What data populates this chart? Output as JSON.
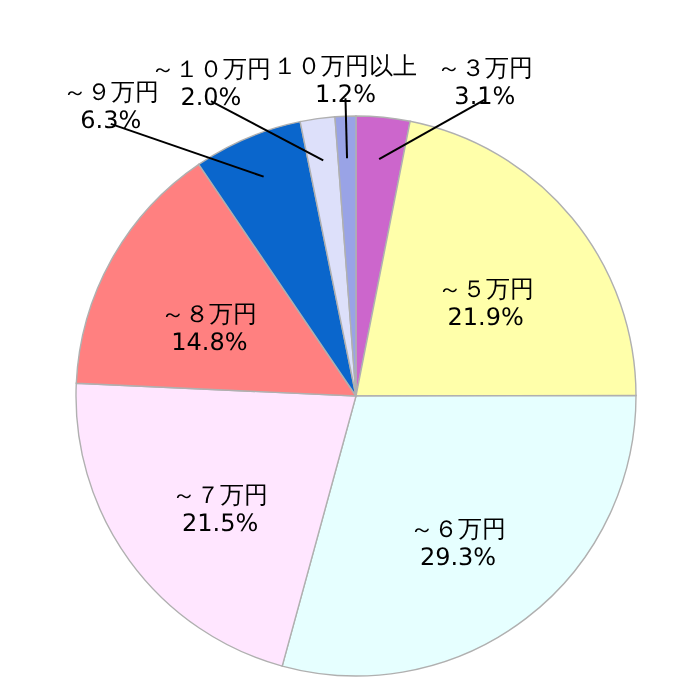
{
  "chart_data": {
    "type": "pie",
    "categories": [
      "～３万円",
      "～５万円",
      "～６万円",
      "～７万円",
      "～８万円",
      "～９万円",
      "～１０万円",
      "１０万円以上"
    ],
    "values": [
      3.1,
      21.9,
      29.3,
      21.5,
      14.8,
      6.3,
      2.0,
      1.2
    ],
    "colors": [
      "#cc66cc",
      "#ffffaa",
      "#e6ffff",
      "#ffe6ff",
      "#ff8080",
      "#0a66cc",
      "#dde0fa",
      "#99a3e6"
    ],
    "value_labels": [
      "3.1%",
      "21.9%",
      "29.3%",
      "21.5%",
      "14.8%",
      "6.3%",
      "2.0%",
      "1.2%"
    ]
  }
}
